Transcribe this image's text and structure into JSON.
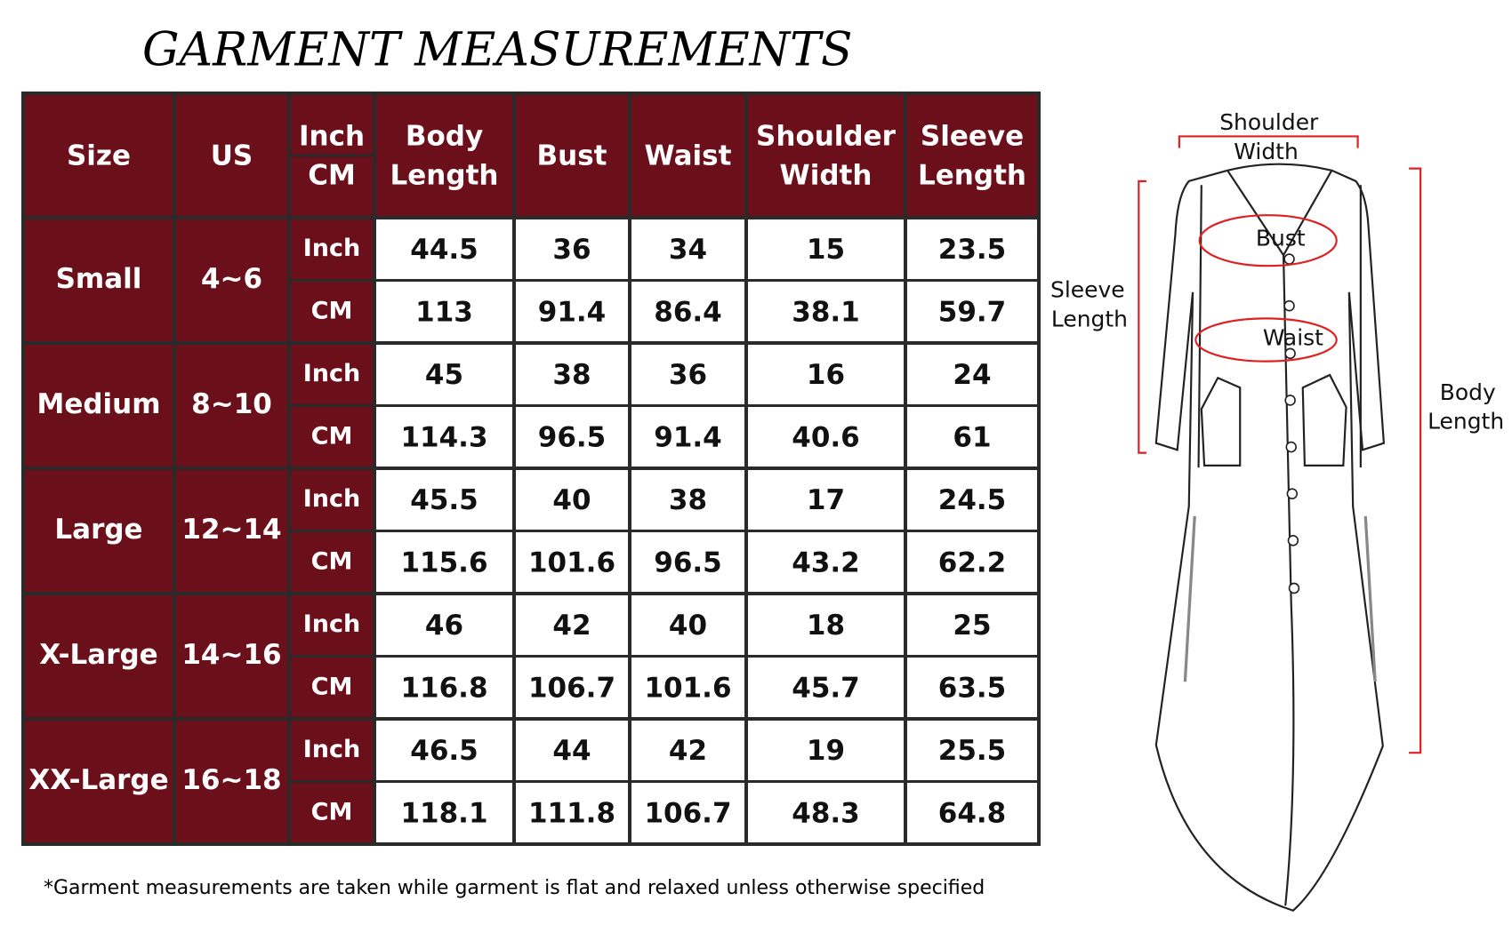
{
  "title": "GARMENT MEASUREMENTS",
  "table": {
    "header": [
      [
        "Size"
      ],
      [
        "US"
      ],
      [
        "Inch",
        "CM"
      ],
      [
        "Body",
        "Length"
      ],
      [
        "Bust"
      ],
      [
        "Waist"
      ],
      [
        "Shoulder",
        "Width"
      ],
      [
        "Sleeve",
        "Length"
      ]
    ],
    "rows": [
      {
        "size": "Small",
        "us": "4~6",
        "inch": {
          "unit": "Inch",
          "values": [
            44.5,
            36,
            34,
            15,
            23.5
          ]
        },
        "cm": {
          "unit": "CM",
          "values": [
            113,
            91.4,
            86.4,
            38.1,
            59.7
          ]
        }
      },
      {
        "size": "Medium",
        "us": "8~10",
        "inch": {
          "unit": "Inch",
          "values": [
            45,
            38,
            36,
            16,
            24
          ]
        },
        "cm": {
          "unit": "CM",
          "values": [
            114.3,
            96.5,
            91.4,
            40.6,
            61
          ]
        }
      },
      {
        "size": "Large",
        "us": "12~14",
        "inch": {
          "unit": "Inch",
          "values": [
            45.5,
            40,
            38,
            17,
            24.5
          ]
        },
        "cm": {
          "unit": "CM",
          "values": [
            115.6,
            101.6,
            96.5,
            43.2,
            62.2
          ]
        }
      },
      {
        "size": "X-Large",
        "us": "14~16",
        "inch": {
          "unit": "Inch",
          "values": [
            46,
            42,
            40,
            18,
            25
          ]
        },
        "cm": {
          "unit": "CM",
          "values": [
            116.8,
            106.7,
            101.6,
            45.7,
            63.5
          ]
        }
      },
      {
        "size": "XX-Large",
        "us": "16~18",
        "inch": {
          "unit": "Inch",
          "values": [
            46.5,
            44,
            42,
            19,
            25.5
          ]
        },
        "cm": {
          "unit": "CM",
          "values": [
            118.1,
            111.8,
            106.7,
            48.3,
            64.8
          ]
        }
      }
    ]
  },
  "footnote": "*Garment measurements are taken while garment is flat and relaxed unless otherwise specified",
  "diagram": {
    "labels": {
      "shoulder_width": [
        "Shoulder",
        "Width"
      ],
      "bust": "Bust",
      "waist": "Waist",
      "sleeve_length": [
        "Sleeve",
        "Length"
      ],
      "body_length": [
        "Body",
        "Length"
      ]
    }
  }
}
